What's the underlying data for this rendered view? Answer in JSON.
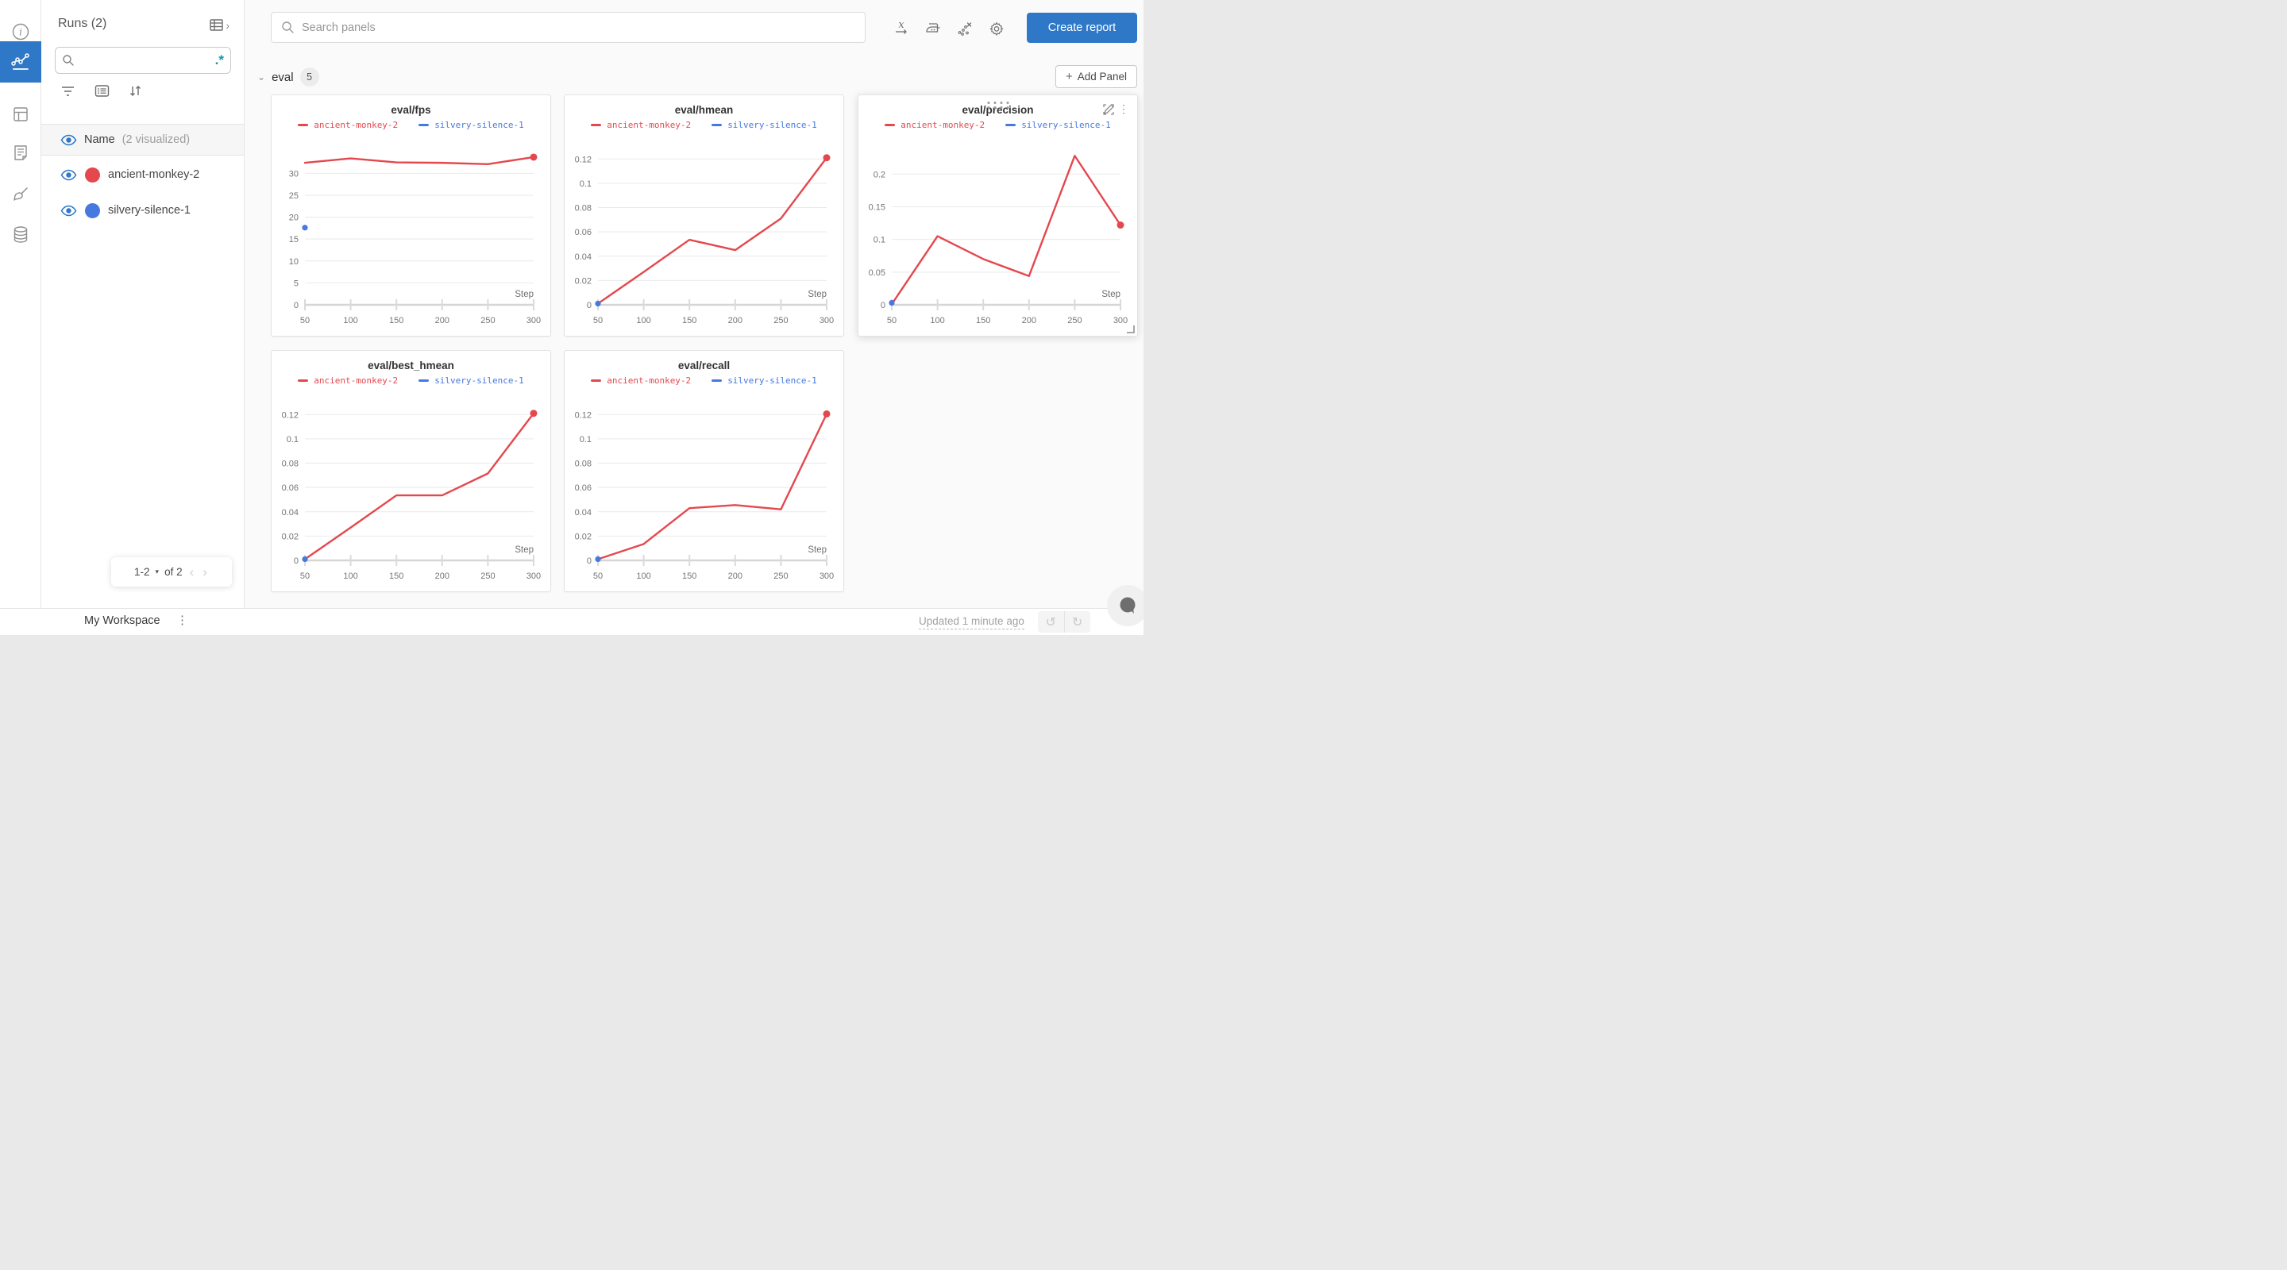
{
  "accent": {
    "blue": "#2e78c7",
    "run_red": "#e4484e",
    "run_blue": "#4679e0",
    "teal": "#089aa9"
  },
  "rail": {
    "items": [
      {
        "name": "info-icon",
        "active": false
      },
      {
        "name": "workspace-charts-icon",
        "active": true
      },
      {
        "name": "table-icon",
        "active": false
      },
      {
        "name": "logs-icon",
        "active": false
      },
      {
        "name": "artifacts-brush-icon",
        "active": false
      },
      {
        "name": "database-icon",
        "active": false
      }
    ]
  },
  "sidebar": {
    "title": "Runs (2)",
    "expand_icon": "table-expand-icon",
    "expand_chevron": "›",
    "search_value": "",
    "search_placeholder": "",
    "regex_glyph": ".*",
    "header": {
      "name_label": "Name",
      "visualized_label": "(2 visualized)"
    },
    "runs": [
      {
        "name": "ancient-monkey-2",
        "color": "#e4484e"
      },
      {
        "name": "silvery-silence-1",
        "color": "#4679e0"
      }
    ],
    "pagination": {
      "range": "1-2",
      "caret": "▾",
      "of_label": "of 2",
      "prev": "‹",
      "next": "›"
    }
  },
  "topbar": {
    "search_placeholder": "Search panels",
    "icons": [
      "x-axis-icon",
      "smoothing-iron-icon",
      "outliers-scatter-icon",
      "settings-gear-icon"
    ],
    "create_report_label": "Create report"
  },
  "section": {
    "collapse_chevron": "⌄",
    "label": "eval",
    "count": "5",
    "add_panel_label": "Add Panel",
    "plus": "+"
  },
  "footer": {
    "workspace_label": "My Workspace",
    "kebab": "⋮",
    "updated_label": "Updated 1 minute ago",
    "undo": "↺",
    "redo": "↻"
  },
  "chart_data": [
    {
      "type": "line",
      "title": "eval/fps",
      "xlabel": "Step",
      "ylabel": "",
      "x_ticks": [
        50,
        100,
        150,
        200,
        250,
        300
      ],
      "y_ticks": [
        0,
        5,
        10,
        15,
        20,
        25,
        30
      ],
      "y_tick_labels": [
        "0",
        "5",
        "10",
        "15",
        "20",
        "25",
        "30"
      ],
      "ylim": [
        0,
        35.5
      ],
      "xlim": [
        50,
        300
      ],
      "grid": true,
      "legend_position": "top",
      "hover_toolbar": false,
      "series": [
        {
          "name": "ancient-monkey-2",
          "color": "#e4484e",
          "points": [
            [
              50,
              32.4
            ],
            [
              100,
              33.4
            ],
            [
              150,
              32.5
            ],
            [
              200,
              32.4
            ],
            [
              250,
              32.1
            ],
            [
              300,
              33.7
            ]
          ]
        },
        {
          "name": "silvery-silence-1",
          "color": "#4679e0",
          "points": [
            [
              50,
              17.6
            ]
          ]
        }
      ]
    },
    {
      "type": "line",
      "title": "eval/hmean",
      "xlabel": "Step",
      "ylabel": "",
      "x_ticks": [
        50,
        100,
        150,
        200,
        250,
        300
      ],
      "y_ticks": [
        0,
        0.02,
        0.04,
        0.06,
        0.08,
        0.1,
        0.12
      ],
      "y_tick_labels": [
        "0",
        "0.02",
        "0.04",
        "0.06",
        "0.08",
        "0.1",
        "0.12"
      ],
      "ylim": [
        0,
        0.128
      ],
      "xlim": [
        50,
        300
      ],
      "grid": true,
      "legend_position": "top",
      "hover_toolbar": false,
      "series": [
        {
          "name": "ancient-monkey-2",
          "color": "#e4484e",
          "points": [
            [
              50,
              0.001
            ],
            [
              100,
              0.027
            ],
            [
              150,
              0.0535
            ],
            [
              200,
              0.045
            ],
            [
              250,
              0.071
            ],
            [
              300,
              0.121
            ]
          ]
        },
        {
          "name": "silvery-silence-1",
          "color": "#4679e0",
          "points": [
            [
              50,
              0.001
            ]
          ]
        }
      ]
    },
    {
      "type": "line",
      "title": "eval/precision",
      "xlabel": "Step",
      "ylabel": "",
      "x_ticks": [
        50,
        100,
        150,
        200,
        250,
        300
      ],
      "y_ticks": [
        0,
        0.05,
        0.1,
        0.15,
        0.2
      ],
      "y_tick_labels": [
        "0",
        "0.05",
        "0.1",
        "0.15",
        "0.2"
      ],
      "ylim": [
        0,
        0.238
      ],
      "xlim": [
        50,
        300
      ],
      "grid": true,
      "legend_position": "top",
      "hover_toolbar": true,
      "series": [
        {
          "name": "ancient-monkey-2",
          "color": "#e4484e",
          "points": [
            [
              50,
              0.001
            ],
            [
              100,
              0.105
            ],
            [
              150,
              0.07
            ],
            [
              200,
              0.044
            ],
            [
              250,
              0.228
            ],
            [
              300,
              0.122
            ]
          ]
        },
        {
          "name": "silvery-silence-1",
          "color": "#4679e0",
          "points": [
            [
              50,
              0.003
            ]
          ]
        }
      ]
    },
    {
      "type": "line",
      "title": "eval/best_hmean",
      "xlabel": "Step",
      "ylabel": "",
      "x_ticks": [
        50,
        100,
        150,
        200,
        250,
        300
      ],
      "y_ticks": [
        0,
        0.02,
        0.04,
        0.06,
        0.08,
        0.1,
        0.12
      ],
      "y_tick_labels": [
        "0",
        "0.02",
        "0.04",
        "0.06",
        "0.08",
        "0.1",
        "0.12"
      ],
      "ylim": [
        0,
        0.128
      ],
      "xlim": [
        50,
        300
      ],
      "grid": true,
      "legend_position": "top",
      "hover_toolbar": false,
      "series": [
        {
          "name": "ancient-monkey-2",
          "color": "#e4484e",
          "points": [
            [
              50,
              0.001
            ],
            [
              100,
              0.027
            ],
            [
              150,
              0.0535
            ],
            [
              200,
              0.0535
            ],
            [
              250,
              0.0715
            ],
            [
              300,
              0.121
            ]
          ]
        },
        {
          "name": "silvery-silence-1",
          "color": "#4679e0",
          "points": [
            [
              50,
              0.001
            ]
          ]
        }
      ]
    },
    {
      "type": "line",
      "title": "eval/recall",
      "xlabel": "Step",
      "ylabel": "",
      "x_ticks": [
        50,
        100,
        150,
        200,
        250,
        300
      ],
      "y_ticks": [
        0,
        0.02,
        0.04,
        0.06,
        0.08,
        0.1,
        0.12
      ],
      "y_tick_labels": [
        "0",
        "0.02",
        "0.04",
        "0.06",
        "0.08",
        "0.1",
        "0.12"
      ],
      "ylim": [
        0,
        0.128
      ],
      "xlim": [
        50,
        300
      ],
      "grid": true,
      "legend_position": "top",
      "hover_toolbar": false,
      "series": [
        {
          "name": "ancient-monkey-2",
          "color": "#e4484e",
          "points": [
            [
              50,
              0.001
            ],
            [
              100,
              0.0135
            ],
            [
              150,
              0.043
            ],
            [
              200,
              0.0455
            ],
            [
              250,
              0.042
            ],
            [
              300,
              0.1205
            ]
          ]
        },
        {
          "name": "silvery-silence-1",
          "color": "#4679e0",
          "points": [
            [
              50,
              0.001
            ]
          ]
        }
      ]
    }
  ]
}
